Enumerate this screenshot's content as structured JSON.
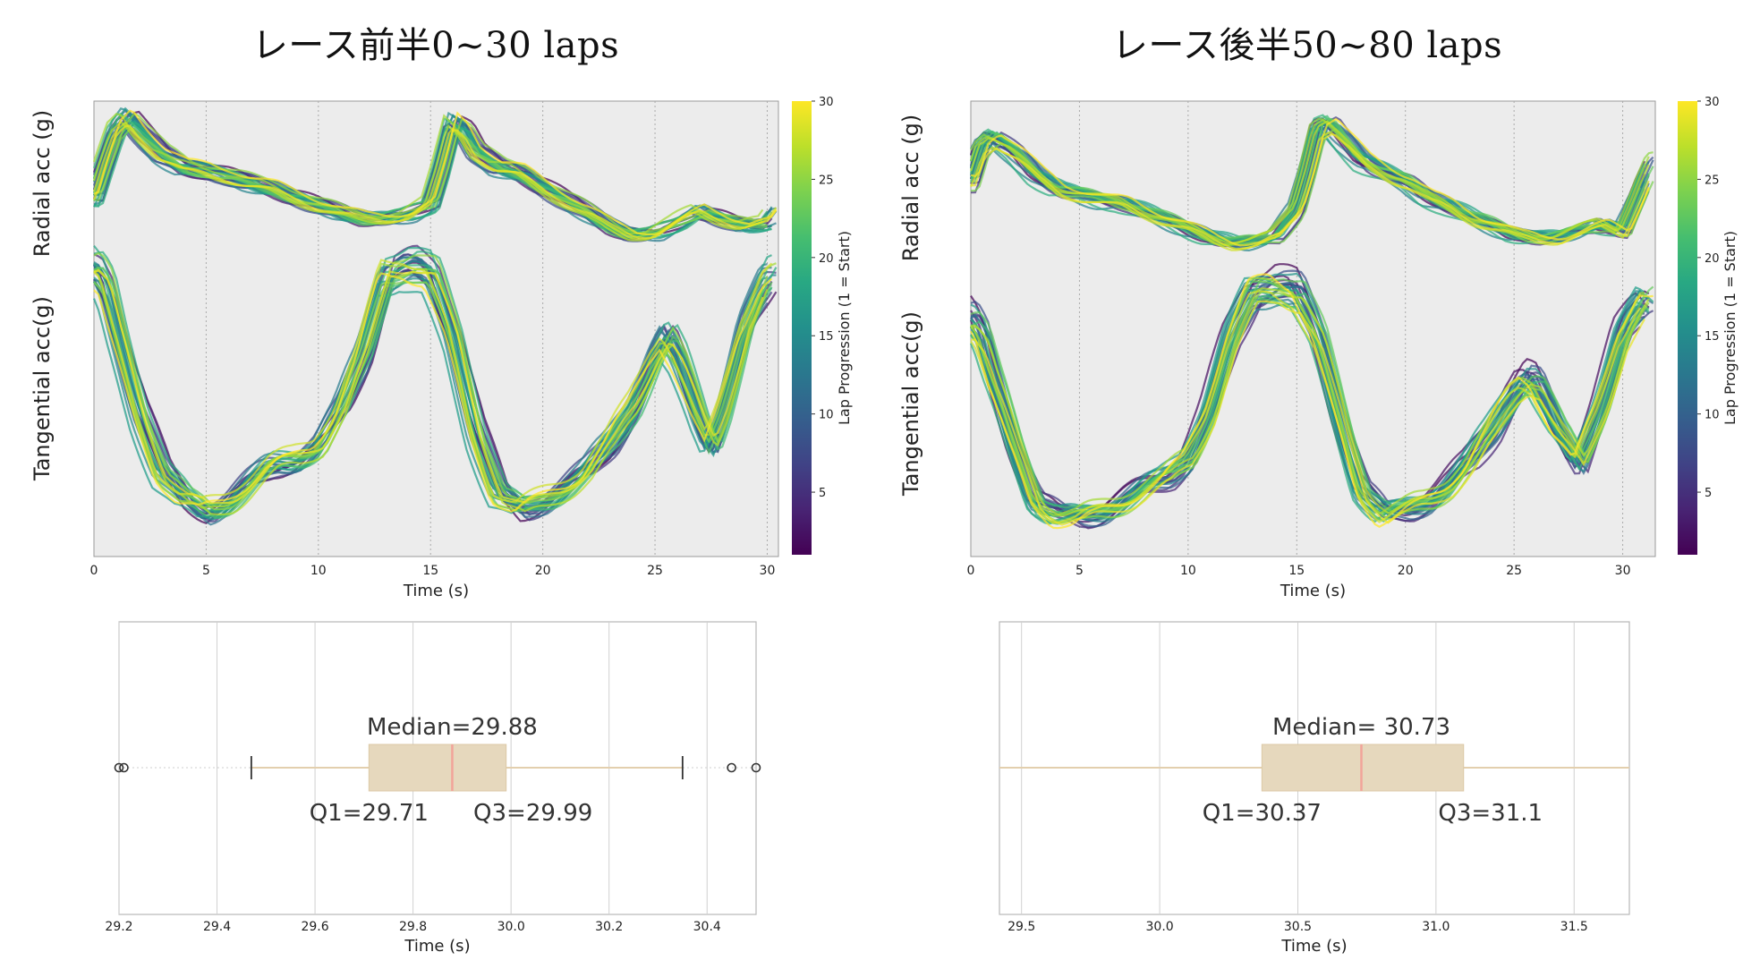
{
  "panels": [
    {
      "title": "レース前半0~30 laps",
      "line_chart": {
        "type": "line",
        "xlabel": "Time (s)",
        "xlim": [
          0,
          30.5
        ],
        "xticks": [
          0,
          5,
          10,
          15,
          20,
          25,
          30
        ],
        "row_labels": [
          "Radial acc (g)",
          "Tangential acc(g)"
        ],
        "colorbar": {
          "label": "Lap Progression (1 = Start)",
          "range": [
            1,
            30
          ],
          "ticks": [
            5,
            10,
            15,
            20,
            25,
            30
          ]
        },
        "n_laps": 30,
        "radial_profile": {
          "t": [
            0,
            0.5,
            1,
            1.5,
            2,
            3,
            4,
            5,
            6,
            7,
            8,
            9,
            10,
            11,
            12,
            13,
            14,
            15,
            15.5,
            16,
            16.5,
            17,
            18,
            19,
            20,
            21,
            22,
            23,
            24,
            25,
            26,
            27,
            28,
            29,
            30,
            30.5
          ],
          "y": [
            0.38,
            0.65,
            0.9,
            1.0,
            0.9,
            0.72,
            0.62,
            0.6,
            0.56,
            0.5,
            0.46,
            0.4,
            0.34,
            0.28,
            0.24,
            0.24,
            0.26,
            0.34,
            0.62,
            0.96,
            0.9,
            0.75,
            0.62,
            0.58,
            0.48,
            0.38,
            0.28,
            0.18,
            0.12,
            0.12,
            0.2,
            0.3,
            0.24,
            0.18,
            0.2,
            0.32
          ]
        },
        "tangential_profile": {
          "t": [
            0,
            0.5,
            1,
            2,
            3,
            4,
            5,
            6,
            7,
            8,
            9,
            10,
            11,
            12,
            13,
            14,
            15,
            16,
            17,
            18,
            19,
            20,
            21,
            22,
            23,
            24,
            25,
            25.5,
            26,
            27,
            27.5,
            28,
            29,
            30,
            30.5
          ],
          "y": [
            0.92,
            0.86,
            0.7,
            0.42,
            0.2,
            0.1,
            0.06,
            0.1,
            0.16,
            0.22,
            0.25,
            0.3,
            0.42,
            0.62,
            0.92,
            0.94,
            0.9,
            0.68,
            0.35,
            0.12,
            0.06,
            0.1,
            0.15,
            0.2,
            0.3,
            0.44,
            0.62,
            0.68,
            0.6,
            0.38,
            0.3,
            0.42,
            0.72,
            0.88,
            0.9
          ]
        }
      },
      "box_chart": {
        "type": "box",
        "xlabel": "Time (s)",
        "xlim": [
          29.2,
          30.5
        ],
        "xticks": [
          "29.2",
          "29.4",
          "29.6",
          "29.8",
          "30.0",
          "30.2",
          "30.4"
        ],
        "q1": 29.71,
        "median": 29.88,
        "q3": 29.99,
        "whisker_low": 29.47,
        "whisker_high": 30.35,
        "outliers": [
          29.2,
          29.21,
          30.45,
          30.5
        ],
        "median_label": "Median=29.88",
        "q1_label": "Q1=29.71",
        "q3_label": "Q3=29.99"
      }
    },
    {
      "title": "レース後半50~80 laps",
      "line_chart": {
        "type": "line",
        "xlabel": "Time (s)",
        "xlim": [
          0,
          31.5
        ],
        "xticks": [
          0,
          5,
          10,
          15,
          20,
          25,
          30
        ],
        "row_labels": [
          "Radial acc (g)",
          "Tangential acc(g)"
        ],
        "colorbar": {
          "label": "Lap Progression (1 = Start)",
          "range": [
            1,
            30
          ],
          "ticks": [
            5,
            10,
            15,
            20,
            25,
            30
          ]
        },
        "n_laps": 30,
        "radial_profile": {
          "t": [
            0,
            0.5,
            1,
            2,
            3,
            4,
            5,
            6,
            7,
            8,
            9,
            10,
            11,
            12,
            13,
            14,
            15,
            15.5,
            16,
            16.5,
            17,
            18,
            19,
            20,
            21,
            22,
            23,
            24,
            25,
            26,
            27,
            28,
            29,
            30,
            31,
            31.5
          ],
          "y": [
            0.55,
            0.8,
            0.86,
            0.75,
            0.6,
            0.5,
            0.46,
            0.42,
            0.4,
            0.34,
            0.28,
            0.22,
            0.16,
            0.12,
            0.12,
            0.16,
            0.36,
            0.62,
            0.92,
            0.95,
            0.86,
            0.7,
            0.62,
            0.55,
            0.44,
            0.38,
            0.3,
            0.24,
            0.18,
            0.16,
            0.16,
            0.2,
            0.25,
            0.2,
            0.55,
            0.7
          ]
        },
        "tangential_profile": {
          "t": [
            0,
            0.5,
            1,
            2,
            3,
            4,
            5,
            6,
            7,
            8,
            9,
            10,
            11,
            12,
            13,
            14,
            15,
            16,
            17,
            18,
            19,
            20,
            21,
            22,
            23,
            24,
            25,
            25.5,
            26,
            27,
            28,
            29,
            30,
            31,
            31.5
          ],
          "y": [
            0.82,
            0.75,
            0.6,
            0.35,
            0.14,
            0.08,
            0.07,
            0.1,
            0.14,
            0.18,
            0.22,
            0.3,
            0.48,
            0.74,
            0.92,
            0.95,
            0.92,
            0.74,
            0.45,
            0.18,
            0.08,
            0.1,
            0.14,
            0.2,
            0.28,
            0.4,
            0.55,
            0.6,
            0.58,
            0.4,
            0.28,
            0.5,
            0.76,
            0.88,
            0.86
          ]
        }
      },
      "box_chart": {
        "type": "box",
        "xlabel": "Time (s)",
        "xlim": [
          29.42,
          31.7
        ],
        "xticks": [
          "29.5",
          "30.0",
          "30.5",
          "31.0",
          "31.5"
        ],
        "q1": 30.37,
        "median": 30.73,
        "q3": 31.1,
        "whisker_low": 29.42,
        "whisker_high": 31.7,
        "outliers": [],
        "median_label": "Median= 30.73",
        "q1_label": "Q1=30.37",
        "q3_label": "Q3=31.1"
      }
    }
  ],
  "chart_data": [
    {
      "type": "line",
      "xlabel": "Time (s)",
      "xticks": [
        0,
        5,
        10,
        15,
        20,
        25,
        30
      ],
      "ylabels": [
        "Radial acc (g)",
        "Tangential acc(g)"
      ],
      "colorbar_label": "Lap Progression (1 = Start)",
      "colorbar_ticks": [
        5,
        10,
        15,
        20,
        25,
        30
      ]
    },
    {
      "type": "box",
      "xlabel": "Time (s)",
      "q1": 29.71,
      "median": 29.88,
      "q3": 29.99,
      "whisker_low": 29.47,
      "whisker_high": 30.35,
      "outliers": [
        29.2,
        29.21,
        30.45,
        30.5
      ]
    },
    {
      "type": "line",
      "xlabel": "Time (s)",
      "xticks": [
        0,
        5,
        10,
        15,
        20,
        25,
        30
      ],
      "ylabels": [
        "Radial acc (g)",
        "Tangential acc(g)"
      ],
      "colorbar_label": "Lap Progression (1 = Start)",
      "colorbar_ticks": [
        5,
        10,
        15,
        20,
        25,
        30
      ]
    },
    {
      "type": "box",
      "xlabel": "Time (s)",
      "q1": 30.37,
      "median": 30.73,
      "q3": 31.1,
      "whisker_low": 29.42,
      "whisker_high": 31.7,
      "outliers": []
    }
  ]
}
